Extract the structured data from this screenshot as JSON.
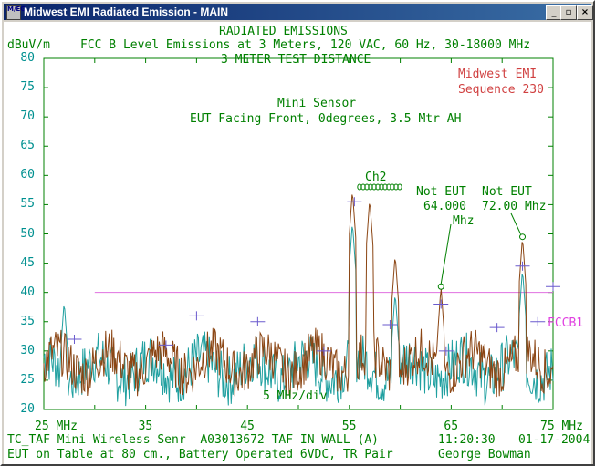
{
  "window": {
    "title": "Midwest EMI Radiated Emission - MAIN",
    "icon_label": "M/EG",
    "buttons": {
      "minimize": "_",
      "maximize": "▫",
      "close": "×"
    }
  },
  "header": {
    "line1": "RADIATED EMISSIONS",
    "unit": "dBuV/m",
    "line2": "FCC B Level Emissions at 3 Meters, 120 VAC, 60 Hz, 30-18000 MHz",
    "line3": "3 METER TEST DISTANCE"
  },
  "annotations": {
    "company": "Midwest EMI",
    "sequence": "Sequence 230",
    "sensor_title": "Mini Sensor",
    "sensor_detail": "EUT Facing Front, 0degrees, 3.5 Mtr AH",
    "ch2": "Ch2",
    "note1_line1": "Not EUT",
    "note1_line2": "64.000",
    "note1_line3": "Mhz",
    "note2_line1": "Not EUT",
    "note2_line2": "72.00 Mhz",
    "limit_label": "FCCB1",
    "div_label": "5 MHz/div"
  },
  "footer": {
    "left1": "TC_TAF Mini Wireless Senr  A03013672 TAF IN WALL (A)",
    "time": "11:20:30",
    "date": "01-17-2004",
    "left2": "EUT on Table at 80 cm., Battery Operated 6VDC, TR Pair",
    "operator": "George Bowman"
  },
  "colors": {
    "grid_text": "#008000",
    "axis_text": "#009090",
    "trace_peak": "#8b4513",
    "trace_avg": "#20a0a0",
    "limit_line": "#e070e0",
    "markers": "#6a5acd"
  },
  "chart_data": {
    "type": "line",
    "xlabel": "",
    "ylabel": "dBuV/m",
    "x_ticks": [
      "25 MHz",
      "35",
      "45",
      "55",
      "65",
      "75 MHz"
    ],
    "y_ticks": [
      "80",
      "75",
      "70",
      "65",
      "60",
      "55",
      "50",
      "45",
      "40",
      "35",
      "30",
      "25",
      "20"
    ],
    "xlim": [
      25,
      75
    ],
    "ylim": [
      20,
      80
    ],
    "limit": {
      "name": "FCCB1",
      "value": 40,
      "from_x": 30
    },
    "peaks": [
      {
        "x": 55.3,
        "y": 57.5
      },
      {
        "x": 57.0,
        "y": 56.0
      },
      {
        "x": 59.5,
        "y": 46.5
      },
      {
        "x": 64.0,
        "y": 41.0
      },
      {
        "x": 72.0,
        "y": 49.5
      }
    ],
    "markers": [
      {
        "x": 28.0,
        "y": 32.0
      },
      {
        "x": 37.0,
        "y": 31.0
      },
      {
        "x": 40.0,
        "y": 36.0
      },
      {
        "x": 46.0,
        "y": 35.0
      },
      {
        "x": 52.5,
        "y": 30.0
      },
      {
        "x": 55.5,
        "y": 55.5
      },
      {
        "x": 59.0,
        "y": 34.5
      },
      {
        "x": 64.0,
        "y": 38.0
      },
      {
        "x": 64.5,
        "y": 30.0
      },
      {
        "x": 69.5,
        "y": 34.0
      },
      {
        "x": 72.0,
        "y": 44.5
      },
      {
        "x": 73.5,
        "y": 35.0
      },
      {
        "x": 75.0,
        "y": 41.0
      }
    ]
  }
}
